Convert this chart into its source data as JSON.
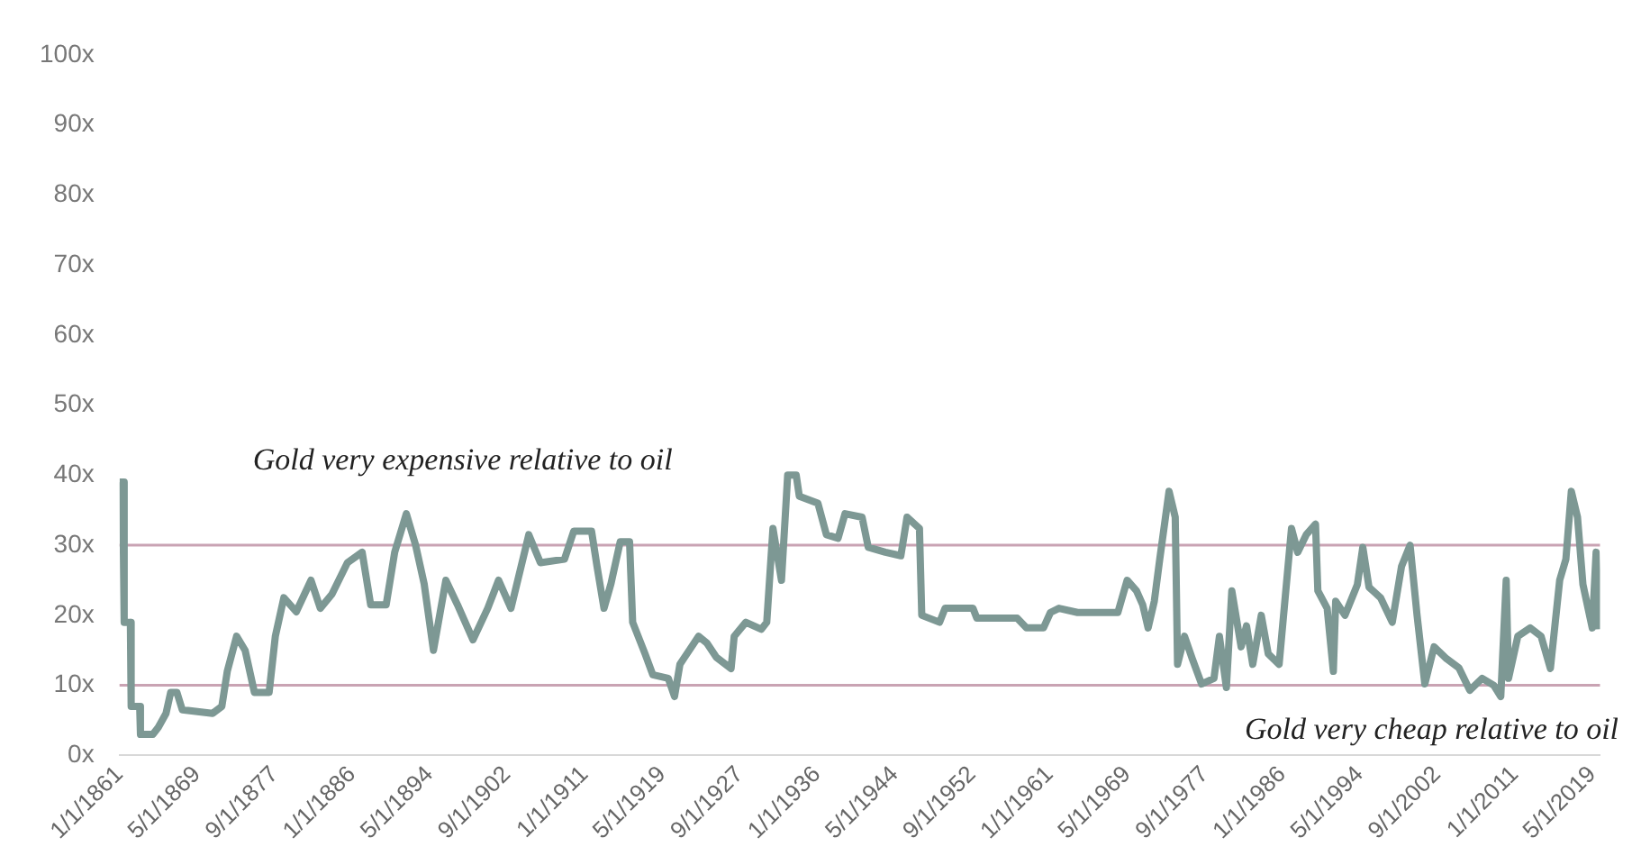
{
  "chart_data": {
    "type": "line",
    "legend": false,
    "grid": false,
    "marker": "none",
    "line_style": "solid",
    "x": [
      "1861-01",
      "1861-05",
      "1861-07",
      "1862-03",
      "1862-04",
      "1863-03",
      "1863-04",
      "1864-08",
      "1865-03",
      "1866-01",
      "1866-07",
      "1867-03",
      "1867-10",
      "1871-01",
      "1872-01",
      "1872-08",
      "1873-08",
      "1874-07",
      "1875-07",
      "1877-02",
      "1877-10",
      "1878-09",
      "1880-01",
      "1881-08",
      "1882-08",
      "1883-11",
      "1885-07",
      "1887-02",
      "1888-01",
      "1889-09",
      "1890-08",
      "1891-11",
      "1892-11",
      "1893-10",
      "1894-10",
      "1896-02",
      "1897-05",
      "1899-01",
      "1900-08",
      "1901-10",
      "1903-02",
      "1905-01",
      "1906-04",
      "1908-11",
      "1909-11",
      "1911-10",
      "1912-05",
      "1913-02",
      "1913-11",
      "1914-11",
      "1915-11",
      "1916-03",
      "1917-07",
      "1918-05",
      "1920-01",
      "1920-09",
      "1921-04",
      "1923-04",
      "1924-03",
      "1925-03",
      "1926-10",
      "1927-02",
      "1928-05",
      "1930-01",
      "1930-08",
      "1931-04",
      "1932-03",
      "1932-11",
      "1933-10",
      "1934-02",
      "1936-02",
      "1937-01",
      "1938-04",
      "1939-01",
      "1940-11",
      "1941-07",
      "1943-05",
      "1945-01",
      "1945-09",
      "1947-01",
      "1947-04",
      "1949-03",
      "1949-10",
      "1952-10",
      "1953-03",
      "1957-07",
      "1958-07",
      "1960-05",
      "1961-02",
      "1962-01",
      "1964-01",
      "1968-05",
      "1969-05",
      "1970-05",
      "1971-01",
      "1971-08",
      "1972-04",
      "1972-11",
      "1973-11",
      "1974-07",
      "1974-10",
      "1975-07",
      "1976-05",
      "1977-05",
      "1978-09",
      "1979-04",
      "1980-01",
      "1980-08",
      "1981-08",
      "1982-03",
      "1982-11",
      "1983-10",
      "1984-07",
      "1985-09",
      "1987-01",
      "1987-09",
      "1988-08",
      "1989-08",
      "1989-11",
      "1990-11",
      "1991-07",
      "1991-10",
      "1992-10",
      "1994-02",
      "1994-09",
      "1995-05",
      "1996-08",
      "1997-11",
      "1998-11",
      "1999-10",
      "2000-07",
      "2001-05",
      "2002-05",
      "2003-09",
      "2005-01",
      "2006-03",
      "2007-07",
      "2008-10",
      "2009-07",
      "2010-02",
      "2010-05",
      "2011-05",
      "2012-09",
      "2013-11",
      "2014-11",
      "2015-11",
      "2016-07",
      "2017-02",
      "2017-10",
      "2018-05",
      "2019-05",
      "2019-10",
      "2020-02"
    ],
    "series": [
      {
        "color": "#7d9894",
        "values": [
          39,
          39,
          19,
          19,
          7,
          7,
          3,
          3,
          4,
          6,
          9,
          9,
          6.5,
          6,
          7,
          12,
          17,
          15,
          9,
          9,
          17,
          22.5,
          20.5,
          25,
          21,
          23,
          27.5,
          29,
          21.5,
          21.5,
          29,
          34.5,
          30,
          24.5,
          15,
          25,
          21.5,
          16.5,
          21,
          25,
          21,
          31.5,
          27.5,
          28,
          32,
          32,
          27,
          21,
          24.5,
          30.5,
          30.5,
          19,
          14.5,
          11.5,
          11,
          8.4,
          13,
          17,
          16,
          14,
          12.4,
          17,
          19,
          18,
          19,
          32.4,
          25,
          40,
          40,
          37,
          36,
          31.5,
          31,
          34.5,
          34,
          29.7,
          29,
          28.5,
          34,
          32.4,
          20,
          19,
          21,
          21,
          19.6,
          19.6,
          18.2,
          18.2,
          20.4,
          21,
          20.4,
          20.4,
          25,
          23.5,
          21.5,
          18.2,
          22,
          28,
          37.7,
          34,
          13,
          17,
          13.8,
          10.2,
          11,
          17,
          9.7,
          23.5,
          15.5,
          18.5,
          13,
          20,
          14.5,
          13,
          32.4,
          29,
          31.5,
          33,
          23.5,
          21,
          12,
          22,
          20,
          24.4,
          29.7,
          24,
          22.5,
          19,
          27,
          30,
          20,
          10.2,
          15.5,
          13.8,
          12.5,
          9.3,
          11,
          10,
          8.4,
          25,
          11,
          17,
          18.2,
          17,
          12.4,
          25,
          28,
          37.7,
          34,
          24.4,
          18.2,
          29,
          18
        ]
      }
    ],
    "xlim": [
      "1861-01-01",
      "2020-03-01"
    ],
    "xticks": [
      {
        "value": "1861-01-01",
        "label": "1/1/1861"
      },
      {
        "value": "1869-05-01",
        "label": "5/1/1869"
      },
      {
        "value": "1877-09-01",
        "label": "9/1/1877"
      },
      {
        "value": "1886-01-01",
        "label": "1/1/1886"
      },
      {
        "value": "1894-05-01",
        "label": "5/1/1894"
      },
      {
        "value": "1902-09-01",
        "label": "9/1/1902"
      },
      {
        "value": "1911-01-01",
        "label": "1/1/1911"
      },
      {
        "value": "1919-05-01",
        "label": "5/1/1919"
      },
      {
        "value": "1927-09-01",
        "label": "9/1/1927"
      },
      {
        "value": "1936-01-01",
        "label": "1/1/1936"
      },
      {
        "value": "1944-05-01",
        "label": "5/1/1944"
      },
      {
        "value": "1952-09-01",
        "label": "9/1/1952"
      },
      {
        "value": "1961-01-01",
        "label": "1/1/1961"
      },
      {
        "value": "1969-05-01",
        "label": "5/1/1969"
      },
      {
        "value": "1977-09-01",
        "label": "9/1/1977"
      },
      {
        "value": "1986-01-01",
        "label": "1/1/1986"
      },
      {
        "value": "1994-05-01",
        "label": "5/1/1994"
      },
      {
        "value": "2002-09-01",
        "label": "9/1/2002"
      },
      {
        "value": "2011-01-01",
        "label": "1/1/2011"
      },
      {
        "value": "2019-05-01",
        "label": "5/1/2019"
      }
    ],
    "ylim": [
      0,
      100
    ],
    "yticks": [
      {
        "value": 0,
        "label": "0x"
      },
      {
        "value": 10,
        "label": "10x"
      },
      {
        "value": 20,
        "label": "20x"
      },
      {
        "value": 30,
        "label": "30x"
      },
      {
        "value": 40,
        "label": "40x"
      },
      {
        "value": 50,
        "label": "50x"
      },
      {
        "value": 60,
        "label": "60x"
      },
      {
        "value": 70,
        "label": "70x"
      },
      {
        "value": 80,
        "label": "80x"
      },
      {
        "value": 90,
        "label": "90x"
      },
      {
        "value": 100,
        "label": "100x"
      }
    ],
    "ref_lines": [
      {
        "axis": "y",
        "value": 30,
        "color": "#c9a3b3"
      },
      {
        "axis": "y",
        "value": 10,
        "color": "#c9a3b3"
      }
    ],
    "annotations": [
      "Gold very expensive relative to oil",
      "Gold very cheap relative to oil"
    ]
  }
}
